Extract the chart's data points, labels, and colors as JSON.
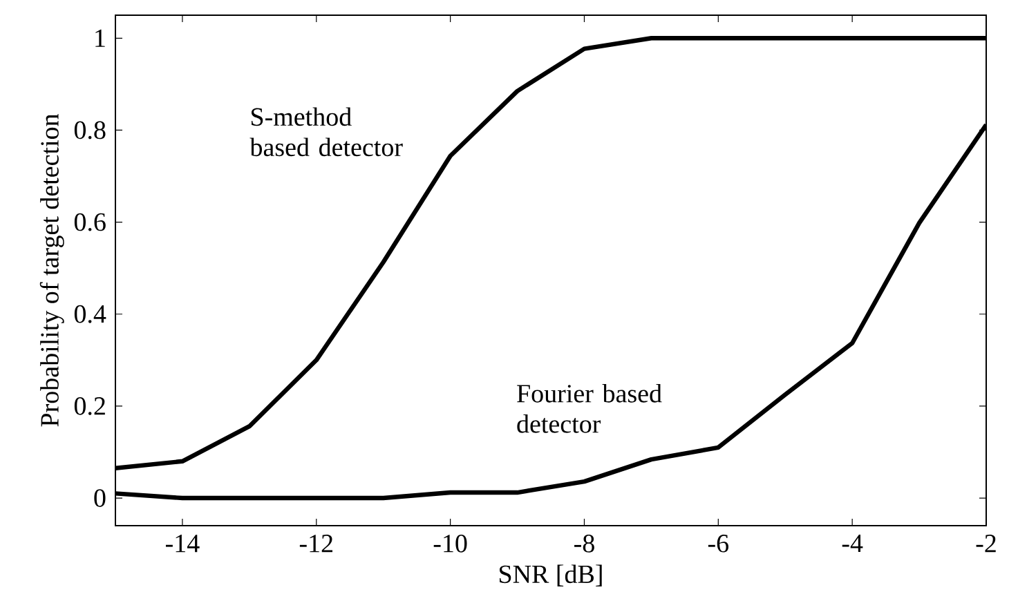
{
  "chart_data": {
    "type": "line",
    "xlabel": "SNR [dB]",
    "ylabel": "Probability of target detection",
    "x": [
      -15,
      -14,
      -13,
      -12,
      -11,
      -10,
      -9,
      -8,
      -7,
      -6,
      -5,
      -4,
      -3,
      -2
    ],
    "series": [
      {
        "name": "S-method based detector",
        "color": "#000000",
        "values": [
          0.065,
          0.08,
          0.156,
          0.3,
          0.513,
          0.744,
          0.885,
          0.977,
          1.0,
          1.0,
          1.0,
          1.0,
          1.0,
          1.0
        ]
      },
      {
        "name": "Fourier based detector",
        "color": "#000000",
        "values": [
          0.01,
          0.0,
          0.0,
          0.0,
          0.0,
          0.012,
          0.012,
          0.036,
          0.084,
          0.11,
          0.225,
          0.337,
          0.598,
          0.812
        ]
      }
    ],
    "xlim": [
      -15,
      -2
    ],
    "ylim": [
      -0.06,
      1.05
    ],
    "xticks": [
      -14,
      -12,
      -10,
      -8,
      -6,
      -4,
      -2
    ],
    "yticks": [
      0,
      0.2,
      0.4,
      0.6,
      0.8,
      1
    ],
    "grid": false,
    "marker": "none",
    "line_style": "solid"
  }
}
